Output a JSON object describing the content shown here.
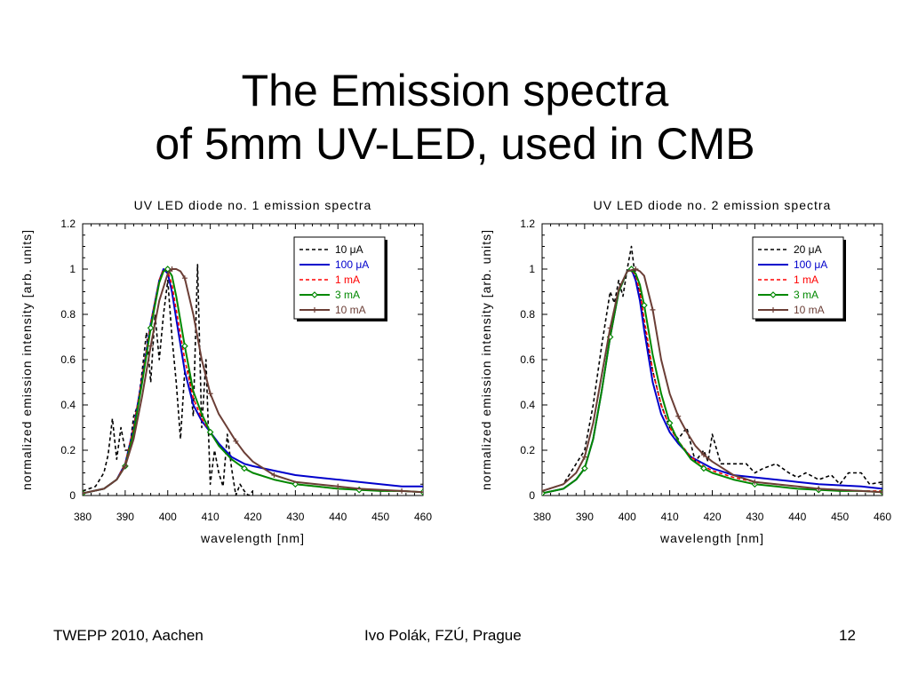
{
  "slide": {
    "title_line1": "The Emission spectra",
    "title_line2": "of 5mm UV-LED, used in CMB"
  },
  "footer": {
    "left": "TWEPP 2010, Aachen",
    "center": "Ivo Polák, FZÚ, Prague",
    "right": "12"
  },
  "chart_data": [
    {
      "type": "line",
      "title": "UV LED diode no. 1 emission spectra",
      "xlabel": "wavelength [nm]",
      "ylabel": "normalized emission intensity [arb. units]",
      "xlim": [
        380,
        460
      ],
      "ylim": [
        0,
        1.2
      ],
      "xticks": [
        380,
        390,
        400,
        410,
        420,
        430,
        440,
        450,
        460
      ],
      "yticks": [
        0,
        0.2,
        0.4,
        0.6,
        0.8,
        1,
        1.2
      ],
      "ytick_labels": [
        "0",
        "0.2",
        "0.4",
        "0.6",
        "0.8",
        "1",
        "1.2"
      ],
      "grid": false,
      "legend_position": "top-right",
      "series": [
        {
          "name": "10 μA",
          "color": "#000000",
          "style": "dashed",
          "marker": "none",
          "x": [
            380,
            383,
            385,
            386,
            387,
            388,
            389,
            390,
            391,
            392,
            393,
            394,
            395,
            396,
            397,
            398,
            399,
            400,
            401,
            402,
            403,
            404,
            405,
            406,
            407,
            408,
            409,
            410,
            411,
            412,
            413,
            414,
            415,
            416,
            417,
            418,
            419,
            420
          ],
          "y": [
            0.02,
            0.04,
            0.1,
            0.18,
            0.34,
            0.16,
            0.3,
            0.2,
            0.2,
            0.35,
            0.4,
            0.55,
            0.72,
            0.5,
            0.8,
            0.6,
            0.8,
            0.95,
            0.7,
            0.5,
            0.25,
            0.55,
            0.55,
            0.35,
            1.02,
            0.3,
            0.6,
            0.05,
            0.2,
            0.1,
            0.04,
            0.27,
            0.12,
            0.0,
            0.05,
            0.02,
            0.0,
            0.02
          ]
        },
        {
          "name": "100 μA",
          "color": "#0000cc",
          "style": "solid",
          "marker": "none",
          "x": [
            380,
            385,
            388,
            390,
            392,
            394,
            396,
            398,
            399,
            400,
            401,
            402,
            404,
            406,
            408,
            410,
            412,
            415,
            418,
            420,
            425,
            430,
            435,
            440,
            445,
            450,
            455,
            460
          ],
          "y": [
            0.01,
            0.03,
            0.07,
            0.14,
            0.3,
            0.52,
            0.76,
            0.95,
            1.0,
            0.98,
            0.9,
            0.78,
            0.55,
            0.4,
            0.33,
            0.28,
            0.23,
            0.17,
            0.14,
            0.13,
            0.11,
            0.09,
            0.08,
            0.07,
            0.06,
            0.05,
            0.04,
            0.04
          ]
        },
        {
          "name": "1 mA",
          "color": "#ff0000",
          "style": "dashed",
          "marker": "none",
          "x": [
            380,
            385,
            388,
            390,
            392,
            394,
            396,
            398,
            399,
            400,
            401,
            402,
            404,
            406,
            408,
            410,
            412,
            415,
            418,
            420,
            425,
            430,
            435,
            440,
            445,
            450,
            455,
            460
          ],
          "y": [
            0.01,
            0.03,
            0.07,
            0.14,
            0.3,
            0.52,
            0.76,
            0.95,
            1.0,
            0.99,
            0.93,
            0.82,
            0.6,
            0.43,
            0.34,
            0.28,
            0.22,
            0.16,
            0.12,
            0.1,
            0.07,
            0.05,
            0.04,
            0.03,
            0.025,
            0.02,
            0.02,
            0.015
          ]
        },
        {
          "name": "3 mA",
          "color": "#008800",
          "style": "solid",
          "marker": "diamond",
          "x": [
            380,
            385,
            388,
            390,
            392,
            394,
            396,
            398,
            399,
            400,
            401,
            402,
            404,
            406,
            408,
            410,
            412,
            415,
            418,
            420,
            425,
            430,
            435,
            440,
            445,
            450,
            455,
            460
          ],
          "y": [
            0.01,
            0.03,
            0.07,
            0.13,
            0.28,
            0.5,
            0.74,
            0.94,
            0.99,
            1.0,
            0.97,
            0.88,
            0.66,
            0.46,
            0.36,
            0.28,
            0.22,
            0.16,
            0.12,
            0.1,
            0.07,
            0.05,
            0.04,
            0.03,
            0.025,
            0.02,
            0.02,
            0.015
          ]
        },
        {
          "name": "10 mA",
          "color": "#6b3e36",
          "style": "solid",
          "marker": "plus",
          "x": [
            380,
            385,
            388,
            390,
            392,
            394,
            396,
            398,
            400,
            401,
            402,
            403,
            404,
            406,
            408,
            410,
            412,
            414,
            416,
            418,
            420,
            425,
            430,
            435,
            440,
            445,
            450,
            455,
            460
          ],
          "y": [
            0.01,
            0.03,
            0.07,
            0.13,
            0.25,
            0.44,
            0.66,
            0.86,
            0.98,
            1.0,
            1.0,
            0.99,
            0.96,
            0.8,
            0.6,
            0.45,
            0.36,
            0.3,
            0.24,
            0.19,
            0.15,
            0.09,
            0.06,
            0.05,
            0.04,
            0.03,
            0.025,
            0.02,
            0.015
          ]
        }
      ]
    },
    {
      "type": "line",
      "title": "UV LED diode no. 2 emission spectra",
      "xlabel": "wavelength [nm]",
      "ylabel": "normalized emission intensity [arb. units]",
      "xlim": [
        380,
        460
      ],
      "ylim": [
        0,
        1.2
      ],
      "xticks": [
        380,
        390,
        400,
        410,
        420,
        430,
        440,
        450,
        460
      ],
      "yticks": [
        0,
        0.2,
        0.4,
        0.6,
        0.8,
        1,
        1.2
      ],
      "ytick_labels": [
        "0",
        "0.2",
        "0.4",
        "0.6",
        "0.8",
        "1",
        "1.2"
      ],
      "grid": false,
      "legend_position": "top-right",
      "series": [
        {
          "name": "20 μA",
          "color": "#000000",
          "style": "dashed",
          "marker": "none",
          "x": [
            380,
            385,
            388,
            390,
            392,
            394,
            396,
            397,
            398,
            399,
            400,
            401,
            402,
            403,
            404,
            406,
            408,
            410,
            412,
            414,
            416,
            418,
            419,
            420,
            422,
            425,
            428,
            430,
            432,
            435,
            438,
            440,
            442,
            445,
            448,
            450,
            452,
            455,
            457,
            460
          ],
          "y": [
            0.02,
            0.05,
            0.14,
            0.2,
            0.4,
            0.66,
            0.9,
            0.85,
            0.95,
            0.88,
            1.0,
            1.1,
            0.95,
            0.9,
            0.75,
            0.55,
            0.4,
            0.3,
            0.25,
            0.3,
            0.15,
            0.2,
            0.15,
            0.27,
            0.14,
            0.14,
            0.14,
            0.1,
            0.12,
            0.14,
            0.1,
            0.08,
            0.1,
            0.07,
            0.09,
            0.05,
            0.1,
            0.1,
            0.05,
            0.06
          ]
        },
        {
          "name": "100 μA",
          "color": "#0000cc",
          "style": "solid",
          "marker": "none",
          "x": [
            380,
            385,
            388,
            390,
            392,
            394,
            396,
            398,
            400,
            401,
            402,
            403,
            404,
            406,
            408,
            410,
            412,
            415,
            418,
            420,
            425,
            430,
            435,
            440,
            445,
            450,
            455,
            460
          ],
          "y": [
            0.01,
            0.03,
            0.07,
            0.12,
            0.25,
            0.46,
            0.7,
            0.9,
            0.99,
            1.0,
            0.95,
            0.86,
            0.73,
            0.5,
            0.36,
            0.28,
            0.23,
            0.17,
            0.14,
            0.12,
            0.09,
            0.08,
            0.07,
            0.06,
            0.05,
            0.045,
            0.04,
            0.03
          ]
        },
        {
          "name": "1 mA",
          "color": "#ff0000",
          "style": "dashed",
          "marker": "none",
          "x": [
            380,
            385,
            388,
            390,
            392,
            394,
            396,
            398,
            400,
            401,
            402,
            403,
            404,
            406,
            408,
            410,
            412,
            415,
            418,
            420,
            425,
            430,
            435,
            440,
            445,
            450,
            455,
            460
          ],
          "y": [
            0.01,
            0.03,
            0.07,
            0.12,
            0.25,
            0.46,
            0.7,
            0.9,
            0.99,
            1.0,
            0.97,
            0.9,
            0.78,
            0.55,
            0.4,
            0.3,
            0.24,
            0.17,
            0.13,
            0.11,
            0.08,
            0.06,
            0.05,
            0.04,
            0.03,
            0.025,
            0.02,
            0.02
          ]
        },
        {
          "name": "3 mA",
          "color": "#008800",
          "style": "solid",
          "marker": "diamond",
          "x": [
            380,
            385,
            388,
            390,
            392,
            394,
            396,
            398,
            400,
            401,
            402,
            403,
            404,
            406,
            408,
            410,
            412,
            415,
            418,
            420,
            425,
            430,
            435,
            440,
            445,
            450,
            455,
            460
          ],
          "y": [
            0.01,
            0.03,
            0.07,
            0.12,
            0.25,
            0.46,
            0.7,
            0.9,
            0.99,
            1.0,
            0.98,
            0.93,
            0.84,
            0.62,
            0.45,
            0.32,
            0.24,
            0.16,
            0.12,
            0.1,
            0.07,
            0.05,
            0.04,
            0.03,
            0.025,
            0.02,
            0.02,
            0.015
          ]
        },
        {
          "name": "10 mA",
          "color": "#6b3e36",
          "style": "solid",
          "marker": "plus",
          "x": [
            380,
            385,
            388,
            390,
            392,
            394,
            396,
            398,
            400,
            402,
            403,
            404,
            406,
            408,
            410,
            412,
            414,
            416,
            418,
            420,
            425,
            430,
            435,
            440,
            445,
            450,
            455,
            460
          ],
          "y": [
            0.02,
            0.05,
            0.1,
            0.17,
            0.32,
            0.53,
            0.74,
            0.91,
            0.99,
            1.0,
            0.99,
            0.97,
            0.82,
            0.6,
            0.45,
            0.35,
            0.28,
            0.22,
            0.18,
            0.15,
            0.09,
            0.06,
            0.05,
            0.04,
            0.03,
            0.025,
            0.02,
            0.015
          ]
        }
      ]
    }
  ]
}
